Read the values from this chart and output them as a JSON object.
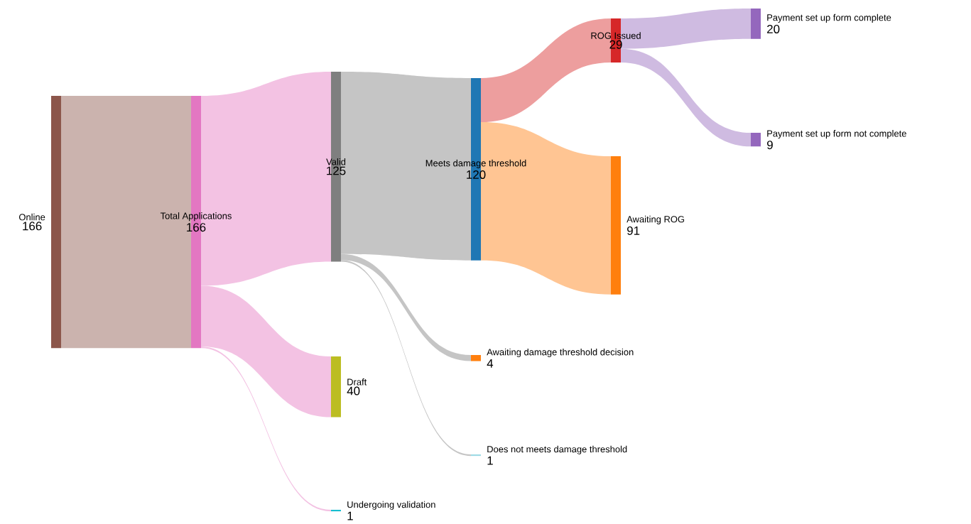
{
  "chart_data": {
    "type": "other",
    "categories": [
      "Online",
      "Total Applications",
      "Valid",
      "Draft",
      "Undergoing validation",
      "Meets damage threshold",
      "Awaiting damage threshold decision",
      "Does not meets damage threshold",
      "ROG Issued",
      "Awaiting ROG",
      "Payment set up form complete",
      "Payment set up form not complete"
    ],
    "values": [
      166,
      166,
      125,
      40,
      1,
      120,
      4,
      1,
      29,
      91,
      20,
      9
    ],
    "value_labels": [
      "166",
      "166",
      "125",
      "40",
      "1",
      "120",
      "4",
      "1",
      "29",
      "91",
      "20",
      "9"
    ],
    "colors": [
      "#8c564b",
      "#e377c2",
      "#7f7f7f",
      "#bcbd22",
      "#17becf",
      "#1f77b4",
      "#ff7f0e",
      "#9edae5",
      "#d62728",
      "#ff7f0e",
      "#9467bd",
      "#9467bd"
    ]
  }
}
